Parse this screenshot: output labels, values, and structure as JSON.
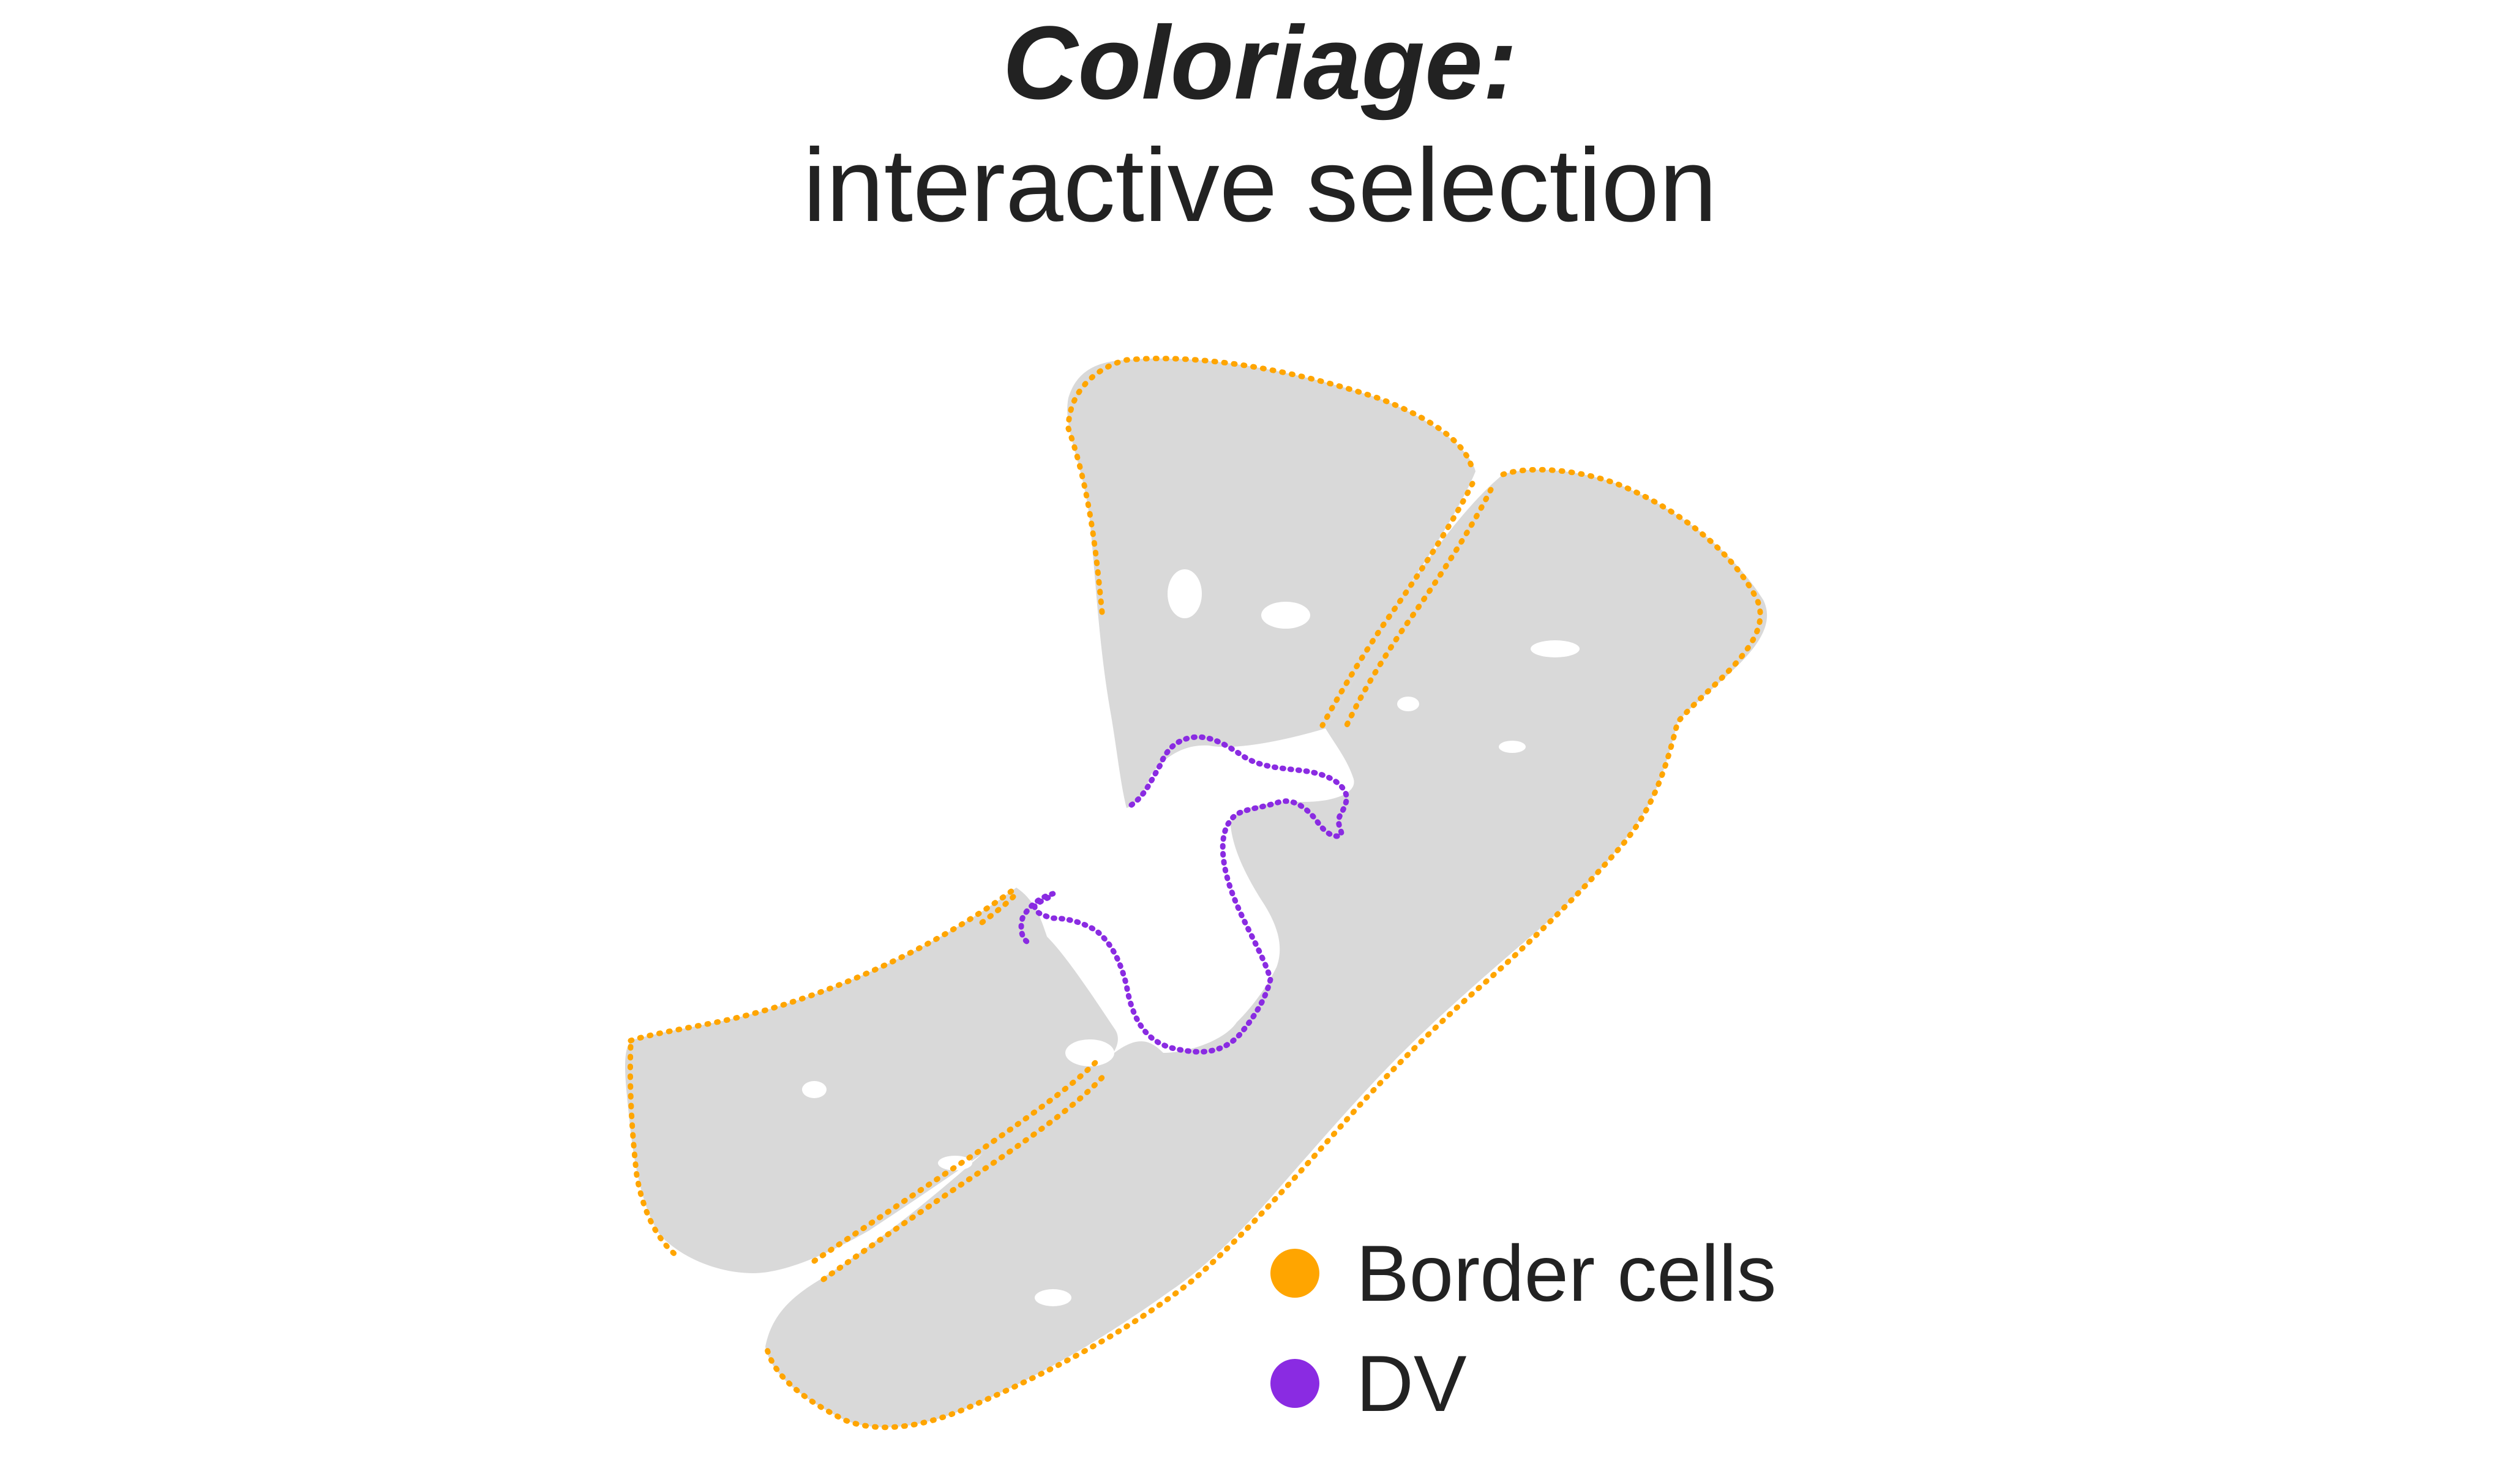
{
  "title": {
    "main": "Coloriage:",
    "subtitle": "interactive selection"
  },
  "legend": {
    "items": [
      {
        "label": "Border cells",
        "color": "#ffa500"
      },
      {
        "label": "DV",
        "color": "#8a2be2"
      }
    ]
  },
  "colors": {
    "tissue": "#d9d9d9",
    "background": "#ffffff",
    "text": "#222222"
  }
}
